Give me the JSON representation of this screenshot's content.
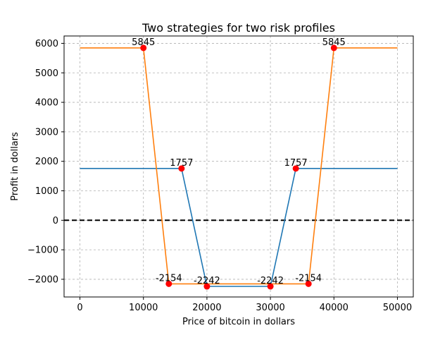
{
  "chart_data": {
    "type": "line",
    "title": "Two strategies for two risk profiles",
    "xlabel": "Price of bitcoin in dollars",
    "ylabel": "Profit in dollars",
    "xlim": [
      -2500,
      52500
    ],
    "ylim": [
      -2600,
      6250
    ],
    "xticks": [
      0,
      10000,
      20000,
      30000,
      40000,
      50000
    ],
    "yticks": [
      -2000,
      -1000,
      0,
      1000,
      2000,
      3000,
      4000,
      5000,
      6000
    ],
    "grid": true,
    "reference_line": {
      "y": 0,
      "style": "dashed",
      "color": "#000000"
    },
    "series": [
      {
        "color": "#1f77b4",
        "points": [
          [
            0,
            1757
          ],
          [
            16000,
            1757
          ],
          [
            20000,
            -2242
          ],
          [
            30000,
            -2242
          ],
          [
            34000,
            1757
          ],
          [
            50000,
            1757
          ]
        ]
      },
      {
        "color": "#ff7f0e",
        "points": [
          [
            0,
            5845
          ],
          [
            10000,
            5845
          ],
          [
            14000,
            -2154
          ],
          [
            36000,
            -2154
          ],
          [
            40000,
            5845
          ],
          [
            50000,
            5845
          ]
        ]
      }
    ],
    "markers": {
      "color": "#ff0000",
      "points": [
        {
          "x": 16000,
          "y": 1757,
          "label": "1757"
        },
        {
          "x": 20000,
          "y": -2242,
          "label": "-2242"
        },
        {
          "x": 30000,
          "y": -2242,
          "label": "-2242"
        },
        {
          "x": 34000,
          "y": 1757,
          "label": "1757"
        },
        {
          "x": 10000,
          "y": 5845,
          "label": "5845"
        },
        {
          "x": 14000,
          "y": -2154,
          "label": "-2154"
        },
        {
          "x": 36000,
          "y": -2154,
          "label": "-2154"
        },
        {
          "x": 40000,
          "y": 5845,
          "label": "5845"
        }
      ]
    }
  }
}
